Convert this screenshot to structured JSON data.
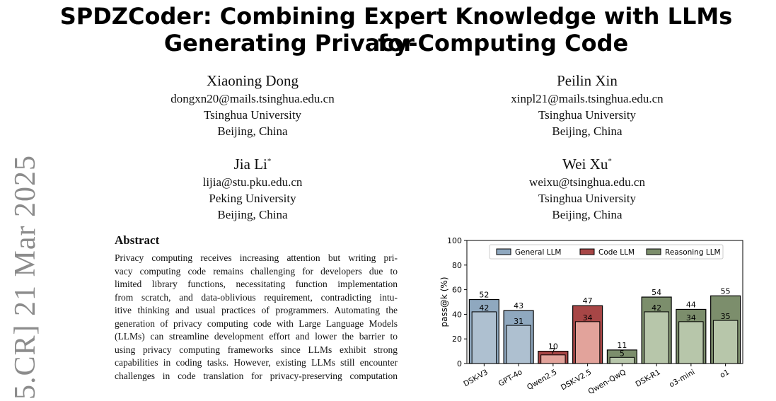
{
  "side_stamp": "5.CR]  21 Mar 2025",
  "title_line1": "SPDZCoder: Combining Expert Knowledge with LLMs for",
  "title_line2": "Generating Privacy-Computing Code",
  "authors": [
    {
      "name": "Xiaoning Dong",
      "sup": "",
      "email": "dongxn20@mails.tsinghua.edu.cn",
      "affiliation": "Tsinghua University",
      "location": "Beijing, China"
    },
    {
      "name": "Peilin Xin",
      "sup": "",
      "email": "xinpl21@mails.tsinghua.edu.cn",
      "affiliation": "Tsinghua University",
      "location": "Beijing, China"
    },
    {
      "name": "Jia Li",
      "sup": "*",
      "email": "lijia@stu.pku.edu.cn",
      "affiliation": "Peking University",
      "location": "Beijing, China"
    },
    {
      "name": "Wei Xu",
      "sup": "*",
      "email": "weixu@tsinghua.edu.cn",
      "affiliation": "Tsinghua University",
      "location": "Beijing, China"
    }
  ],
  "abstract_heading": "Abstract",
  "abstract_lines": [
    "Privacy computing receives increasing attention but writing pri-",
    "vacy computing code remains challenging for developers due to",
    "limited library functions, necessitating function implementation",
    "from scratch, and data-oblivious requirement, contradicting intu-",
    "itive thinking and usual practices of programmers. Automating the",
    "generation of privacy computing code with Large Language Models",
    "(LLMs) can streamline development effort and lower the barrier to",
    "using privacy computing frameworks since LLMs exhibit strong",
    "capabilities in coding tasks. However, existing LLMs still encounter",
    "challenges in code translation for privacy-preserving computation"
  ],
  "chart_data": {
    "type": "bar",
    "ylabel": "pass@k (%)",
    "ylim": [
      0,
      100
    ],
    "yticks": [
      0,
      20,
      40,
      60,
      80,
      100
    ],
    "categories": [
      "DSK-V3",
      "GPT-4o",
      "Qwen2.5",
      "DSK-V2.5",
      "Qwen-QwQ",
      "DSK-R1",
      "o3-mini",
      "o1"
    ],
    "groups": [
      "General LLM",
      "General LLM",
      "Code LLM",
      "Code LLM",
      "Reasoning LLM",
      "Reasoning LLM",
      "Reasoning LLM",
      "Reasoning LLM"
    ],
    "outer_values": [
      52,
      43,
      10,
      47,
      11,
      54,
      44,
      55
    ],
    "inner_values": [
      42,
      31,
      7,
      34,
      5,
      42,
      34,
      35
    ],
    "legend": [
      {
        "label": "General LLM",
        "color": "#8fa8bf",
        "inner_color": "#aec0d0"
      },
      {
        "label": "Code LLM",
        "color": "#a74646",
        "inner_color": "#e2a39b"
      },
      {
        "label": "Reasoning LLM",
        "color": "#7c8e6c",
        "inner_color": "#b7c6aa"
      }
    ],
    "legend_position": "top"
  }
}
